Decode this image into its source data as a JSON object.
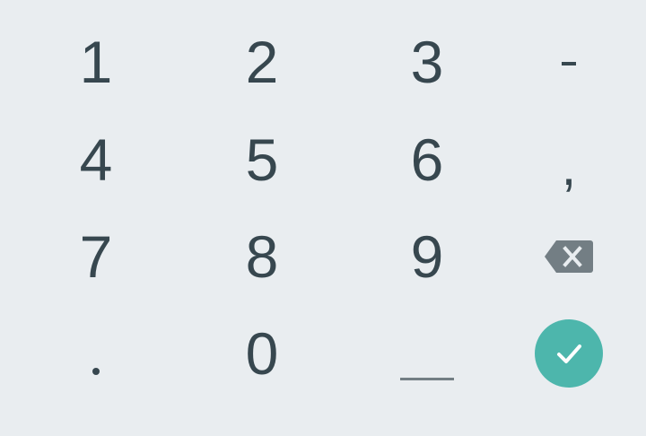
{
  "keys": {
    "one": "1",
    "two": "2",
    "three": "3",
    "four": "4",
    "five": "5",
    "six": "6",
    "seven": "7",
    "eight": "8",
    "nine": "9",
    "zero": "0",
    "minus": "-",
    "comma": ",",
    "period": ".",
    "backspace_icon": "backspace-icon",
    "space_icon": "space-bar-icon",
    "done_icon": "check-icon"
  },
  "colors": {
    "background": "#e9edf0",
    "key_text": "#37474f",
    "backspace": "#737e84",
    "done_accent": "#4db6ac"
  }
}
